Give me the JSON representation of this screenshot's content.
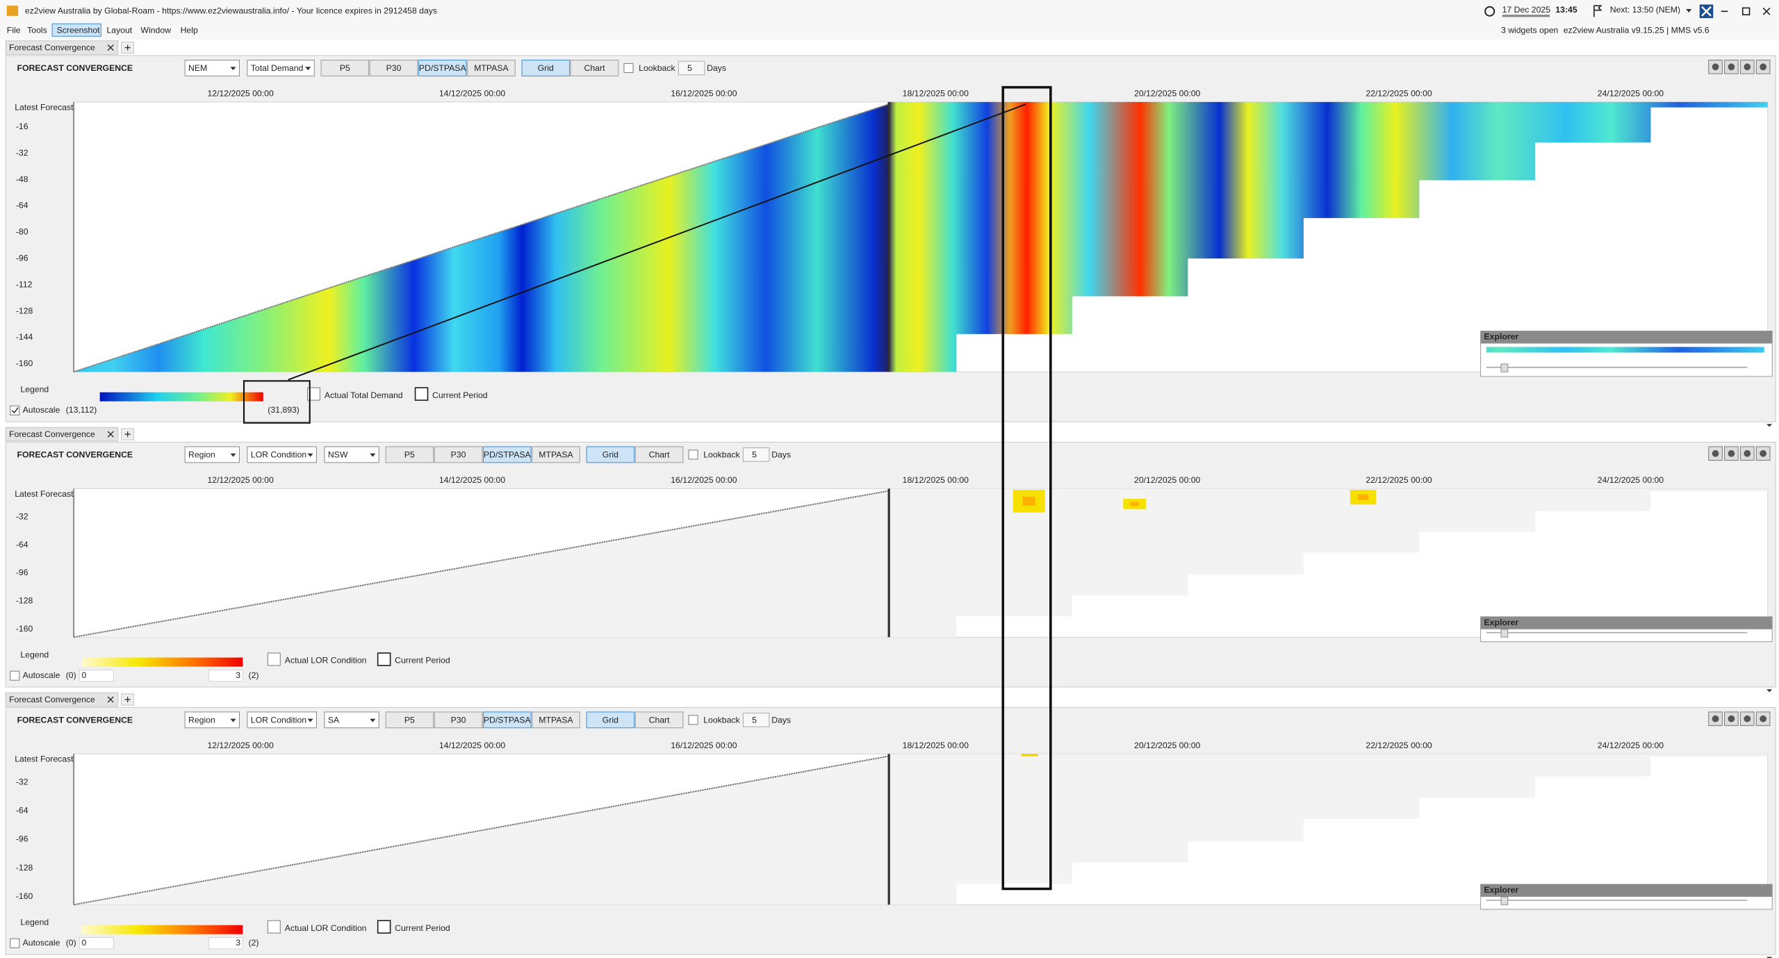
{
  "window": {
    "title": "ez2view Australia by Global-Roam - https://www.ez2viewaustralia.info/ - Your licence expires in 2912458 days",
    "date": "17 Dec 2025",
    "time": "13:45",
    "next": "Next: 13:50 (NEM)",
    "widgets_open": "3 widgets open",
    "version": "ez2view Australia v9.15.25 | MMS v5.6"
  },
  "menu": [
    "File",
    "Tools",
    "Screenshot",
    "Layout",
    "Window",
    "Help"
  ],
  "widgets": [
    {
      "tab": "Forecast Convergence",
      "title": "FORECAST CONVERGENCE",
      "selectors": [
        "NEM",
        "Total Demand"
      ],
      "buttons": [
        "P5",
        "P30",
        "PD/STPASA",
        "MTPASA",
        "Grid",
        "Chart"
      ],
      "lookback": "Lookback",
      "lookback_days": "5",
      "days": "Days",
      "x_labels": [
        "12/12/2025 00:00",
        "14/12/2025 00:00",
        "16/12/2025 00:00",
        "18/12/2025 00:00",
        "20/12/2025 00:00",
        "22/12/2025 00:00",
        "24/12/2025 00:00"
      ],
      "y_labels": [
        "Latest Forecast",
        "-16",
        "-32",
        "-48",
        "-64",
        "-80",
        "-96",
        "-112",
        "-128",
        "-144",
        "-160"
      ],
      "legend": {
        "label": "Legend",
        "autoscale": "Autoscale",
        "min": "(13,112)",
        "max": "(31,893)",
        "actual": "Actual Total Demand",
        "current": "Current Period"
      },
      "explorer": "Explorer"
    },
    {
      "tab": "Forecast Convergence",
      "title": "FORECAST CONVERGENCE",
      "selectors": [
        "Region",
        "LOR Condition",
        "NSW"
      ],
      "buttons": [
        "P5",
        "P30",
        "PD/STPASA",
        "MTPASA",
        "Grid",
        "Chart"
      ],
      "lookback": "Lookback",
      "lookback_days": "5",
      "days": "Days",
      "x_labels": [
        "12/12/2025 00:00",
        "14/12/2025 00:00",
        "16/12/2025 00:00",
        "18/12/2025 00:00",
        "20/12/2025 00:00",
        "22/12/2025 00:00",
        "24/12/2025 00:00"
      ],
      "y_labels": [
        "Latest Forecast",
        "-32",
        "-64",
        "-96",
        "-128",
        "-160"
      ],
      "legend": {
        "label": "Legend",
        "autoscale": "Autoscale",
        "min": "(0)",
        "min_input": "0",
        "max_input": "3",
        "max": "(2)",
        "actual": "Actual LOR Condition",
        "current": "Current Period"
      },
      "explorer": "Explorer"
    },
    {
      "tab": "Forecast Convergence",
      "title": "FORECAST CONVERGENCE",
      "selectors": [
        "Region",
        "LOR Condition",
        "SA"
      ],
      "buttons": [
        "P5",
        "P30",
        "PD/STPASA",
        "MTPASA",
        "Grid",
        "Chart"
      ],
      "lookback": "Lookback",
      "lookback_days": "5",
      "days": "Days",
      "x_labels": [
        "12/12/2025 00:00",
        "14/12/2025 00:00",
        "16/12/2025 00:00",
        "18/12/2025 00:00",
        "20/12/2025 00:00",
        "22/12/2025 00:00",
        "24/12/2025 00:00"
      ],
      "y_labels": [
        "Latest Forecast",
        "-32",
        "-64",
        "-96",
        "-128",
        "-160"
      ],
      "legend": {
        "label": "Legend",
        "autoscale": "Autoscale",
        "min": "(0)",
        "min_input": "0",
        "max_input": "3",
        "max": "(2)",
        "actual": "Actual LOR Condition",
        "current": "Current Period"
      },
      "explorer": "Explorer"
    }
  ]
}
